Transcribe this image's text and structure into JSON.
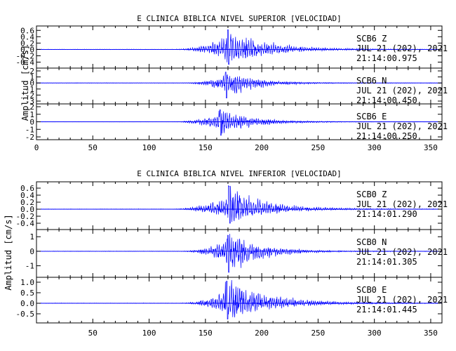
{
  "chart_data": [
    {
      "type": "line",
      "title": "E CLINICA BIBLICA NIVEL SUPERIOR [VELOCIDAD]",
      "ylabel": "Amplitud [cm/s]",
      "xlim": [
        0,
        360
      ],
      "xticks": [
        0,
        50,
        100,
        150,
        200,
        250,
        300,
        350
      ],
      "series": [
        {
          "name": "SCB6 Z",
          "station": "SCB6",
          "component": "Z",
          "date": "JUL 21 (202), 2021",
          "time": "21:14:00.975",
          "ylim": [
            -0.5,
            0.65
          ],
          "yticks": [
            -0.4,
            -0.2,
            0.0,
            0.2,
            0.4,
            0.6
          ],
          "yticklabels": [
            "-0.4",
            "-0.2",
            "0.0",
            "0.2",
            "0.4",
            "0.6"
          ],
          "onset": 118,
          "peak_t": 170,
          "peak": 0.62,
          "trough": -0.47,
          "decay": 32,
          "freq": 0.5
        },
        {
          "name": "SCB6 N",
          "station": "SCB6",
          "component": "N",
          "date": "JUL 21 (202), 2021",
          "time": "21:14:00.450",
          "ylim": [
            -3,
            2
          ],
          "yticks": [
            -3,
            -2,
            -1,
            0,
            1,
            2
          ],
          "yticklabels": [
            "-3",
            "-2",
            "-1",
            "0",
            "1",
            "2"
          ],
          "onset": 128,
          "peak_t": 168,
          "peak": 1.8,
          "trough": -2.5,
          "decay": 24,
          "freq": 0.55
        },
        {
          "name": "SCB6 E",
          "station": "SCB6",
          "component": "E",
          "date": "JUL 21 (202), 2021",
          "time": "21:14:00.250",
          "ylim": [
            -2,
            2
          ],
          "yticks": [
            -2,
            -1,
            0,
            1,
            2
          ],
          "yticklabels": [
            "-2",
            "-1",
            "0",
            "1",
            "2"
          ],
          "onset": 118,
          "peak_t": 163,
          "peak": 1.6,
          "trough": -1.8,
          "decay": 26,
          "freq": 0.55
        }
      ]
    },
    {
      "type": "line",
      "title": "E CLINICA BIBLICA NIVEL INFERIOR [VELOCIDAD]",
      "ylabel": "Amplitud [cm/s]",
      "xlim": [
        0,
        360
      ],
      "xticks": [
        50,
        100,
        150,
        200,
        250,
        300,
        350
      ],
      "series": [
        {
          "name": "SCB0 Z",
          "station": "SCB0",
          "component": "Z",
          "date": "JUL 21 (202), 2021",
          "time": "21:14:01.290",
          "ylim": [
            -0.5,
            0.7
          ],
          "yticks": [
            -0.4,
            -0.2,
            0.0,
            0.2,
            0.4,
            0.6
          ],
          "yticklabels": [
            "-0.4",
            "-0.2",
            "0.0",
            "0.2",
            "0.4",
            "0.6"
          ],
          "onset": 118,
          "peak_t": 171,
          "peak": 0.65,
          "trough": -0.4,
          "decay": 30,
          "freq": 0.5
        },
        {
          "name": "SCB0 N",
          "station": "SCB0",
          "component": "N",
          "date": "JUL 21 (202), 2021",
          "time": "21:14:01.305",
          "ylim": [
            -1.6,
            1.3
          ],
          "yticks": [
            -1,
            0,
            1
          ],
          "yticklabels": [
            "-1",
            "0",
            "1"
          ],
          "onset": 125,
          "peak_t": 170,
          "peak": 1.1,
          "trough": -1.45,
          "decay": 26,
          "freq": 0.55
        },
        {
          "name": "SCB0 E",
          "station": "SCB0",
          "component": "E",
          "date": "JUL 21 (202), 2021",
          "time": "21:14:01.445",
          "ylim": [
            -0.8,
            1.1
          ],
          "yticks": [
            -0.5,
            0.0,
            0.5,
            1.0
          ],
          "yticklabels": [
            "-0.5",
            "0.0",
            "0.5",
            "1.0"
          ],
          "onset": 125,
          "peak_t": 169,
          "peak": 1.05,
          "trough": -0.75,
          "decay": 35,
          "freq": 0.55
        }
      ]
    }
  ]
}
